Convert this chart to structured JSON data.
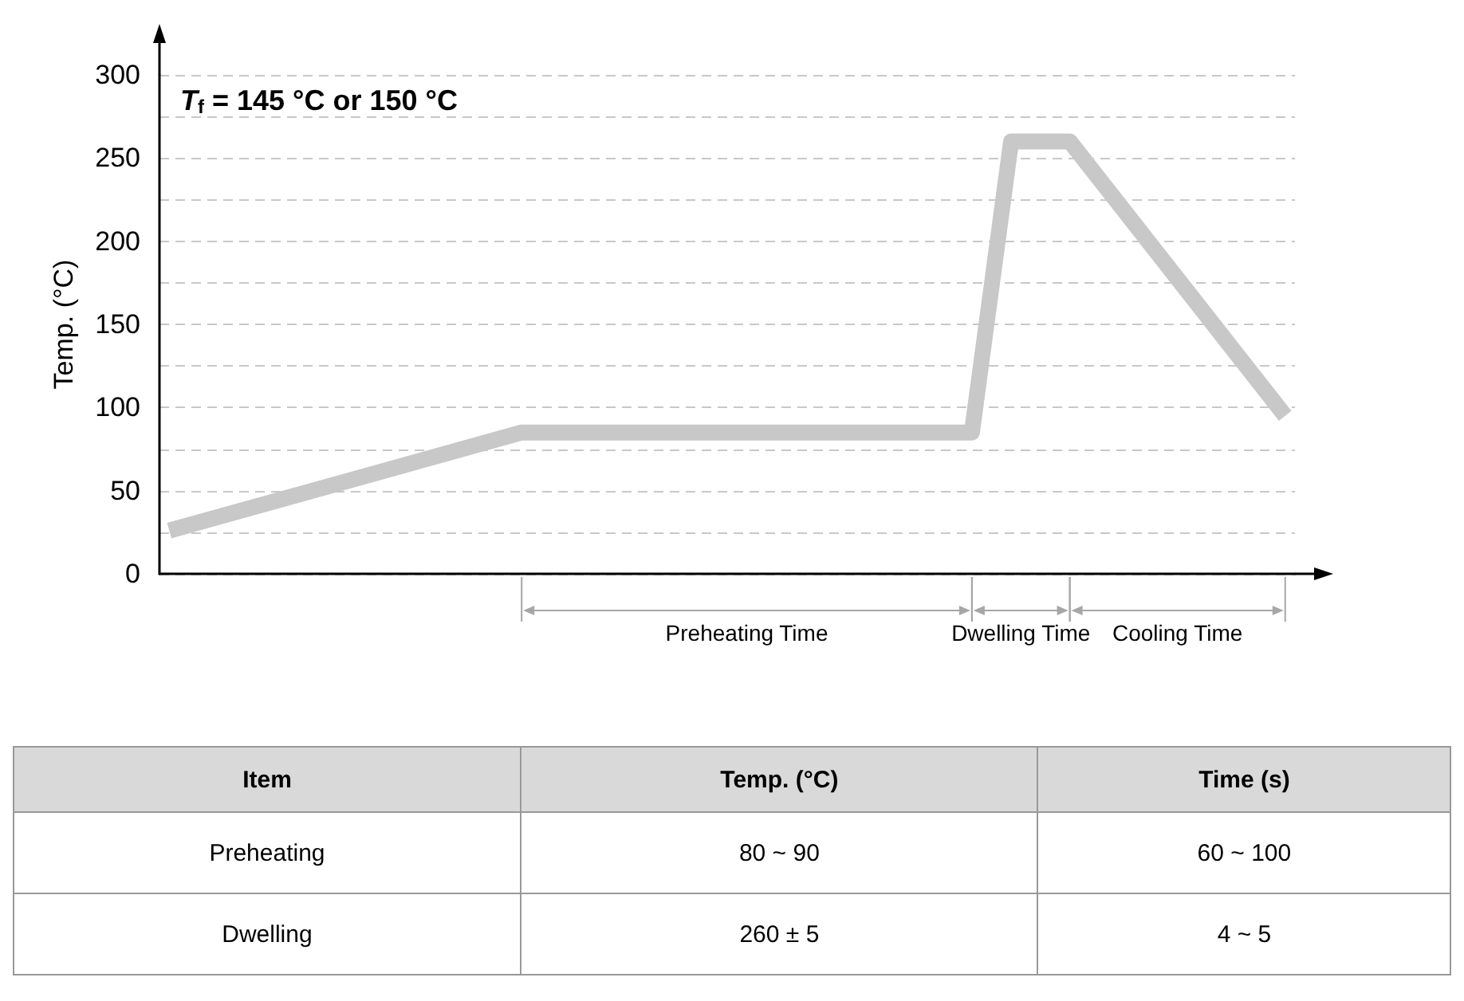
{
  "chart_data": {
    "type": "line",
    "title": "T$_{f}$ = 145 °C or 150 °C",
    "ylabel": "Temp. (°C)",
    "categories": [
      null,
      null,
      null,
      null,
      null,
      null,
      null,
      null,
      null,
      null,
      null,
      null,
      null,
      null,
      null,
      null,
      null,
      null,
      null,
      null,
      null,
      null,
      null,
      null,
      null,
      null,
      null,
      null,
      null,
      null,
      null,
      null,
      null,
      null,
      null,
      null,
      null,
      null,
      null,
      null,
      null,
      null,
      null,
      null,
      null,
      null,
      null,
      null,
      null,
      null,
      null,
      null,
      null,
      null,
      null,
      null,
      null,
      null
    ],
    "series": [
      {
        "color": "#c8c8c8",
        "values": [
          26,
          null,
          null,
          null,
          null,
          null,
          null,
          null,
          null,
          null,
          null,
          null,
          null,
          null,
          null,
          null,
          null,
          null,
          85,
          null,
          null,
          null,
          null,
          null,
          null,
          null,
          null,
          null,
          null,
          null,
          null,
          null,
          null,
          null,
          null,
          null,
          null,
          null,
          null,
          null,
          null,
          85,
          null,
          260,
          null,
          null,
          260,
          null,
          null,
          null,
          null,
          null,
          null,
          null,
          null,
          null,
          null,
          95
        ]
      }
    ],
    "ylim": [
      0,
      300
    ],
    "yticks": [
      0,
      {
        "value": 25,
        "label": null
      },
      50,
      {
        "value": 75,
        "label": null
      },
      100,
      {
        "value": 125,
        "label": null
      },
      150,
      {
        "value": 175,
        "label": null
      },
      200,
      {
        "value": 225,
        "label": null
      },
      250,
      {
        "value": 275,
        "label": null
      },
      300
    ],
    "grid": "y",
    "marker": "none",
    "annotations": [
      "Preheating Time",
      "Dwelling Time",
      "Cooling Time",
      "Item",
      "Temp. (°C)",
      "Time (s)",
      "Preheating",
      "80 ~ 90",
      "60 ~ 100",
      "Dwelling",
      "260 ± 5",
      "4 ~ 5"
    ]
  }
}
